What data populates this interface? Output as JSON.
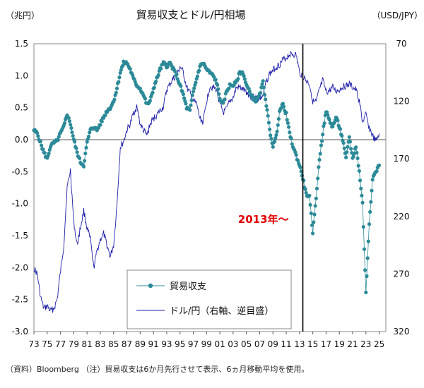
{
  "chart_data": {
    "type": "line",
    "title": "貿易収支とドル/円相場",
    "left_unit": "（兆円）",
    "right_unit": "（USD/JPY）",
    "x_ticks": [
      "73",
      "75",
      "77",
      "79",
      "81",
      "83",
      "85",
      "87",
      "89",
      "91",
      "93",
      "95",
      "97",
      "99",
      "01",
      "03",
      "05",
      "07",
      "09",
      "11",
      "13",
      "15",
      "17",
      "19",
      "21",
      "23",
      "25"
    ],
    "y_left": {
      "min": -3.0,
      "max": 1.5,
      "ticks": [
        "1.5",
        "1.0",
        "0.5",
        "0.0",
        "-0.5",
        "-1.0",
        "-1.5",
        "-2.0",
        "-2.5",
        "-3.0"
      ]
    },
    "y_right": {
      "min": 70,
      "max": 320,
      "inverted": true,
      "ticks": [
        "70",
        "120",
        "170",
        "220",
        "270",
        "320"
      ]
    },
    "annotation": {
      "text": "2013年～",
      "color": "#e00000",
      "year": 2013
    },
    "legend": [
      {
        "name": "貿易収支",
        "color": "#2c8a98",
        "marker": "circle"
      },
      {
        "name": "ドル/円（右軸、逆目盛）",
        "color": "#1f1fa8",
        "marker": "none"
      }
    ],
    "series": [
      {
        "name": "貿易収支",
        "axis": "left",
        "color": "#2c8a98",
        "points": [
          [
            1973.0,
            0.15
          ],
          [
            1973.5,
            0.1
          ],
          [
            1974.0,
            -0.05
          ],
          [
            1974.5,
            -0.2
          ],
          [
            1975.0,
            -0.3
          ],
          [
            1975.5,
            -0.1
          ],
          [
            1976.0,
            -0.05
          ],
          [
            1976.5,
            -0.02
          ],
          [
            1977.0,
            0.1
          ],
          [
            1977.5,
            0.2
          ],
          [
            1978.0,
            0.4
          ],
          [
            1978.5,
            0.25
          ],
          [
            1979.0,
            0.0
          ],
          [
            1979.5,
            -0.2
          ],
          [
            1980.0,
            -0.35
          ],
          [
            1980.5,
            -0.4
          ],
          [
            1981.0,
            -0.05
          ],
          [
            1981.5,
            0.15
          ],
          [
            1982.0,
            0.2
          ],
          [
            1982.5,
            0.15
          ],
          [
            1983.0,
            0.25
          ],
          [
            1983.5,
            0.35
          ],
          [
            1984.0,
            0.45
          ],
          [
            1984.5,
            0.5
          ],
          [
            1985.0,
            0.6
          ],
          [
            1985.5,
            0.8
          ],
          [
            1986.0,
            1.05
          ],
          [
            1986.5,
            1.2
          ],
          [
            1987.0,
            1.2
          ],
          [
            1987.5,
            1.1
          ],
          [
            1988.0,
            0.95
          ],
          [
            1988.5,
            0.85
          ],
          [
            1989.0,
            0.8
          ],
          [
            1989.5,
            0.7
          ],
          [
            1990.0,
            0.55
          ],
          [
            1990.5,
            0.6
          ],
          [
            1991.0,
            0.8
          ],
          [
            1991.5,
            0.95
          ],
          [
            1992.0,
            1.1
          ],
          [
            1992.5,
            1.2
          ],
          [
            1993.0,
            1.15
          ],
          [
            1993.5,
            1.2
          ],
          [
            1994.0,
            1.1
          ],
          [
            1994.5,
            1.0
          ],
          [
            1995.0,
            0.85
          ],
          [
            1995.5,
            0.7
          ],
          [
            1996.0,
            0.5
          ],
          [
            1996.5,
            0.45
          ],
          [
            1997.0,
            0.75
          ],
          [
            1997.5,
            0.95
          ],
          [
            1998.0,
            1.15
          ],
          [
            1998.5,
            1.2
          ],
          [
            1999.0,
            1.1
          ],
          [
            1999.5,
            1.05
          ],
          [
            2000.0,
            1.0
          ],
          [
            2000.5,
            0.9
          ],
          [
            2001.0,
            0.65
          ],
          [
            2001.5,
            0.55
          ],
          [
            2002.0,
            0.75
          ],
          [
            2002.5,
            0.85
          ],
          [
            2003.0,
            0.85
          ],
          [
            2003.5,
            0.9
          ],
          [
            2004.0,
            1.05
          ],
          [
            2004.5,
            1.05
          ],
          [
            2005.0,
            0.85
          ],
          [
            2005.5,
            0.75
          ],
          [
            2006.0,
            0.65
          ],
          [
            2006.5,
            0.6
          ],
          [
            2007.0,
            0.7
          ],
          [
            2007.5,
            0.9
          ],
          [
            2008.0,
            0.55
          ],
          [
            2008.5,
            0.15
          ],
          [
            2009.0,
            -0.1
          ],
          [
            2009.5,
            0.05
          ],
          [
            2010.0,
            0.45
          ],
          [
            2010.5,
            0.55
          ],
          [
            2011.0,
            0.4
          ],
          [
            2011.5,
            0.1
          ],
          [
            2012.0,
            -0.1
          ],
          [
            2012.5,
            -0.25
          ],
          [
            2013.0,
            -0.4
          ],
          [
            2013.5,
            -0.6
          ],
          [
            2014.0,
            -0.85
          ],
          [
            2014.5,
            -0.9
          ],
          [
            2015.0,
            -1.45
          ],
          [
            2015.5,
            -0.9
          ],
          [
            2016.0,
            -0.3
          ],
          [
            2016.5,
            0.1
          ],
          [
            2017.0,
            0.45
          ],
          [
            2017.5,
            0.3
          ],
          [
            2018.0,
            0.2
          ],
          [
            2018.5,
            0.35
          ],
          [
            2019.0,
            0.2
          ],
          [
            2019.5,
            0.0
          ],
          [
            2020.0,
            -0.3
          ],
          [
            2020.5,
            0.05
          ],
          [
            2021.0,
            -0.3
          ],
          [
            2021.5,
            -0.1
          ],
          [
            2022.0,
            -0.5
          ],
          [
            2022.5,
            -1.0
          ],
          [
            2023.0,
            -2.4
          ],
          [
            2023.5,
            -1.3
          ],
          [
            2024.0,
            -0.6
          ],
          [
            2024.5,
            -0.5
          ],
          [
            2025.0,
            -0.4
          ]
        ]
      },
      {
        "name": "ドル/円（右軸、逆目盛）",
        "axis": "right",
        "color": "#1f1fa8",
        "points": [
          [
            1973.0,
            265
          ],
          [
            1973.5,
            270
          ],
          [
            1974.0,
            290
          ],
          [
            1974.5,
            300
          ],
          [
            1975.0,
            298
          ],
          [
            1975.5,
            302
          ],
          [
            1976.0,
            300
          ],
          [
            1976.5,
            292
          ],
          [
            1977.0,
            268
          ],
          [
            1977.5,
            245
          ],
          [
            1978.0,
            195
          ],
          [
            1978.5,
            180
          ],
          [
            1979.0,
            225
          ],
          [
            1979.5,
            245
          ],
          [
            1980.0,
            230
          ],
          [
            1980.5,
            215
          ],
          [
            1981.0,
            230
          ],
          [
            1981.5,
            240
          ],
          [
            1982.0,
            265
          ],
          [
            1982.5,
            250
          ],
          [
            1983.0,
            240
          ],
          [
            1983.5,
            235
          ],
          [
            1984.0,
            245
          ],
          [
            1984.5,
            255
          ],
          [
            1985.0,
            245
          ],
          [
            1985.5,
            210
          ],
          [
            1986.0,
            160
          ],
          [
            1986.5,
            155
          ],
          [
            1987.0,
            145
          ],
          [
            1987.5,
            140
          ],
          [
            1988.0,
            130
          ],
          [
            1988.5,
            125
          ],
          [
            1989.0,
            140
          ],
          [
            1989.5,
            145
          ],
          [
            1990.0,
            150
          ],
          [
            1990.5,
            140
          ],
          [
            1991.0,
            135
          ],
          [
            1991.5,
            132
          ],
          [
            1992.0,
            128
          ],
          [
            1992.5,
            125
          ],
          [
            1993.0,
            110
          ],
          [
            1993.5,
            105
          ],
          [
            1994.0,
            100
          ],
          [
            1994.5,
            98
          ],
          [
            1995.0,
            90
          ],
          [
            1995.5,
            95
          ],
          [
            1996.0,
            108
          ],
          [
            1996.5,
            113
          ],
          [
            1997.0,
            120
          ],
          [
            1997.5,
            122
          ],
          [
            1998.0,
            135
          ],
          [
            1998.5,
            138
          ],
          [
            1999.0,
            120
          ],
          [
            1999.5,
            107
          ],
          [
            2000.0,
            108
          ],
          [
            2000.5,
            110
          ],
          [
            2001.0,
            122
          ],
          [
            2001.5,
            130
          ],
          [
            2002.0,
            127
          ],
          [
            2002.5,
            120
          ],
          [
            2003.0,
            117
          ],
          [
            2003.5,
            108
          ],
          [
            2004.0,
            108
          ],
          [
            2004.5,
            110
          ],
          [
            2005.0,
            112
          ],
          [
            2005.5,
            115
          ],
          [
            2006.0,
            116
          ],
          [
            2006.5,
            117
          ],
          [
            2007.0,
            118
          ],
          [
            2007.5,
            115
          ],
          [
            2008.0,
            103
          ],
          [
            2008.5,
            96
          ],
          [
            2009.0,
            93
          ],
          [
            2009.5,
            90
          ],
          [
            2010.0,
            88
          ],
          [
            2010.5,
            84
          ],
          [
            2011.0,
            82
          ],
          [
            2011.5,
            79
          ],
          [
            2012.0,
            79
          ],
          [
            2012.5,
            80
          ],
          [
            2013.0,
            95
          ],
          [
            2013.5,
            98
          ],
          [
            2014.0,
            102
          ],
          [
            2014.5,
            105
          ],
          [
            2015.0,
            120
          ],
          [
            2015.5,
            121
          ],
          [
            2016.0,
            110
          ],
          [
            2016.5,
            102
          ],
          [
            2017.0,
            112
          ],
          [
            2017.5,
            111
          ],
          [
            2018.0,
            108
          ],
          [
            2018.5,
            111
          ],
          [
            2019.0,
            110
          ],
          [
            2019.5,
            107
          ],
          [
            2020.0,
            107
          ],
          [
            2020.5,
            105
          ],
          [
            2021.0,
            108
          ],
          [
            2021.5,
            110
          ],
          [
            2022.0,
            120
          ],
          [
            2022.5,
            138
          ],
          [
            2023.0,
            132
          ],
          [
            2023.5,
            143
          ],
          [
            2024.0,
            150
          ],
          [
            2024.5,
            155
          ],
          [
            2025.0,
            148
          ]
        ]
      }
    ]
  },
  "footnote": {
    "source": "（資料）Bloomberg",
    "note": "（注）貿易収支は6か月先行させて表示、6ヵ月移動平均を使用。"
  }
}
